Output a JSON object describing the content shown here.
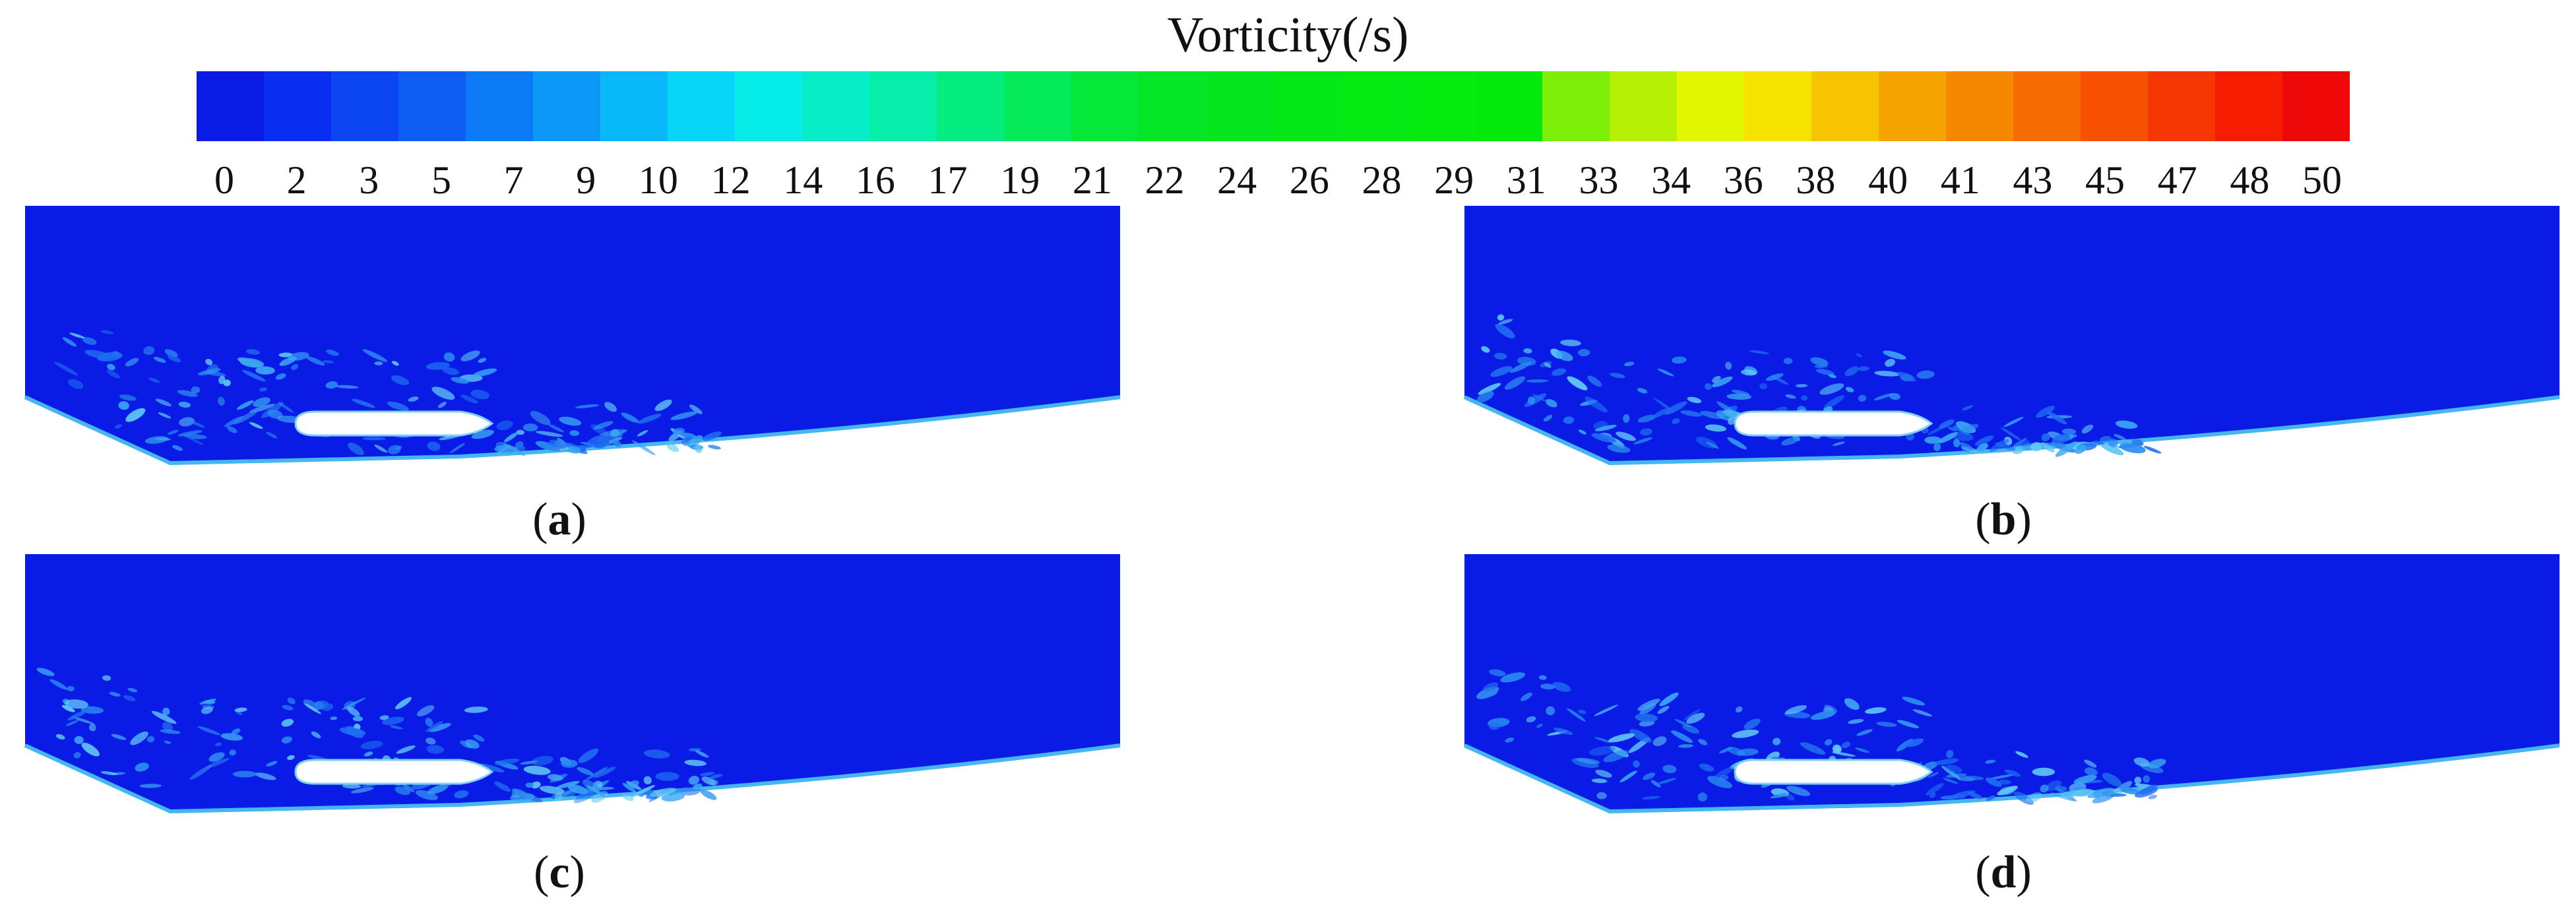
{
  "colorbar": {
    "title": "Vorticity(/s)",
    "colors": [
      "#0a1be6",
      "#0a2ef0",
      "#0b45f2",
      "#0d5df2",
      "#0b7af4",
      "#0b98f6",
      "#08b8f8",
      "#07d6f8",
      "#06ece8",
      "#06eec8",
      "#06eea8",
      "#05ec80",
      "#04ea58",
      "#05e838",
      "#04e626",
      "#05e61e",
      "#05e818",
      "#05ea12",
      "#05ea0f",
      "#04ea0c",
      "#7cee08",
      "#b6f004",
      "#e2f600",
      "#f6e400",
      "#f6c400",
      "#f6a400",
      "#f68800",
      "#f66c00",
      "#f65000",
      "#f63600",
      "#f61c00",
      "#ee0808"
    ],
    "ticks": [
      "0",
      "2",
      "3",
      "5",
      "7",
      "9",
      "10",
      "12",
      "14",
      "16",
      "17",
      "19",
      "21",
      "22",
      "24",
      "26",
      "28",
      "29",
      "31",
      "33",
      "34",
      "36",
      "38",
      "40",
      "41",
      "43",
      "45",
      "47",
      "48",
      "50"
    ]
  },
  "panels": [
    {
      "letter": "a"
    },
    {
      "letter": "b"
    },
    {
      "letter": "c"
    },
    {
      "letter": "d"
    }
  ],
  "field_color": "#0a1be6",
  "wall_color": "#46b6f0",
  "wake_colors": [
    "#1f6ef2",
    "#3aa6f4",
    "#2a8cf0",
    "#60c8f6"
  ]
}
